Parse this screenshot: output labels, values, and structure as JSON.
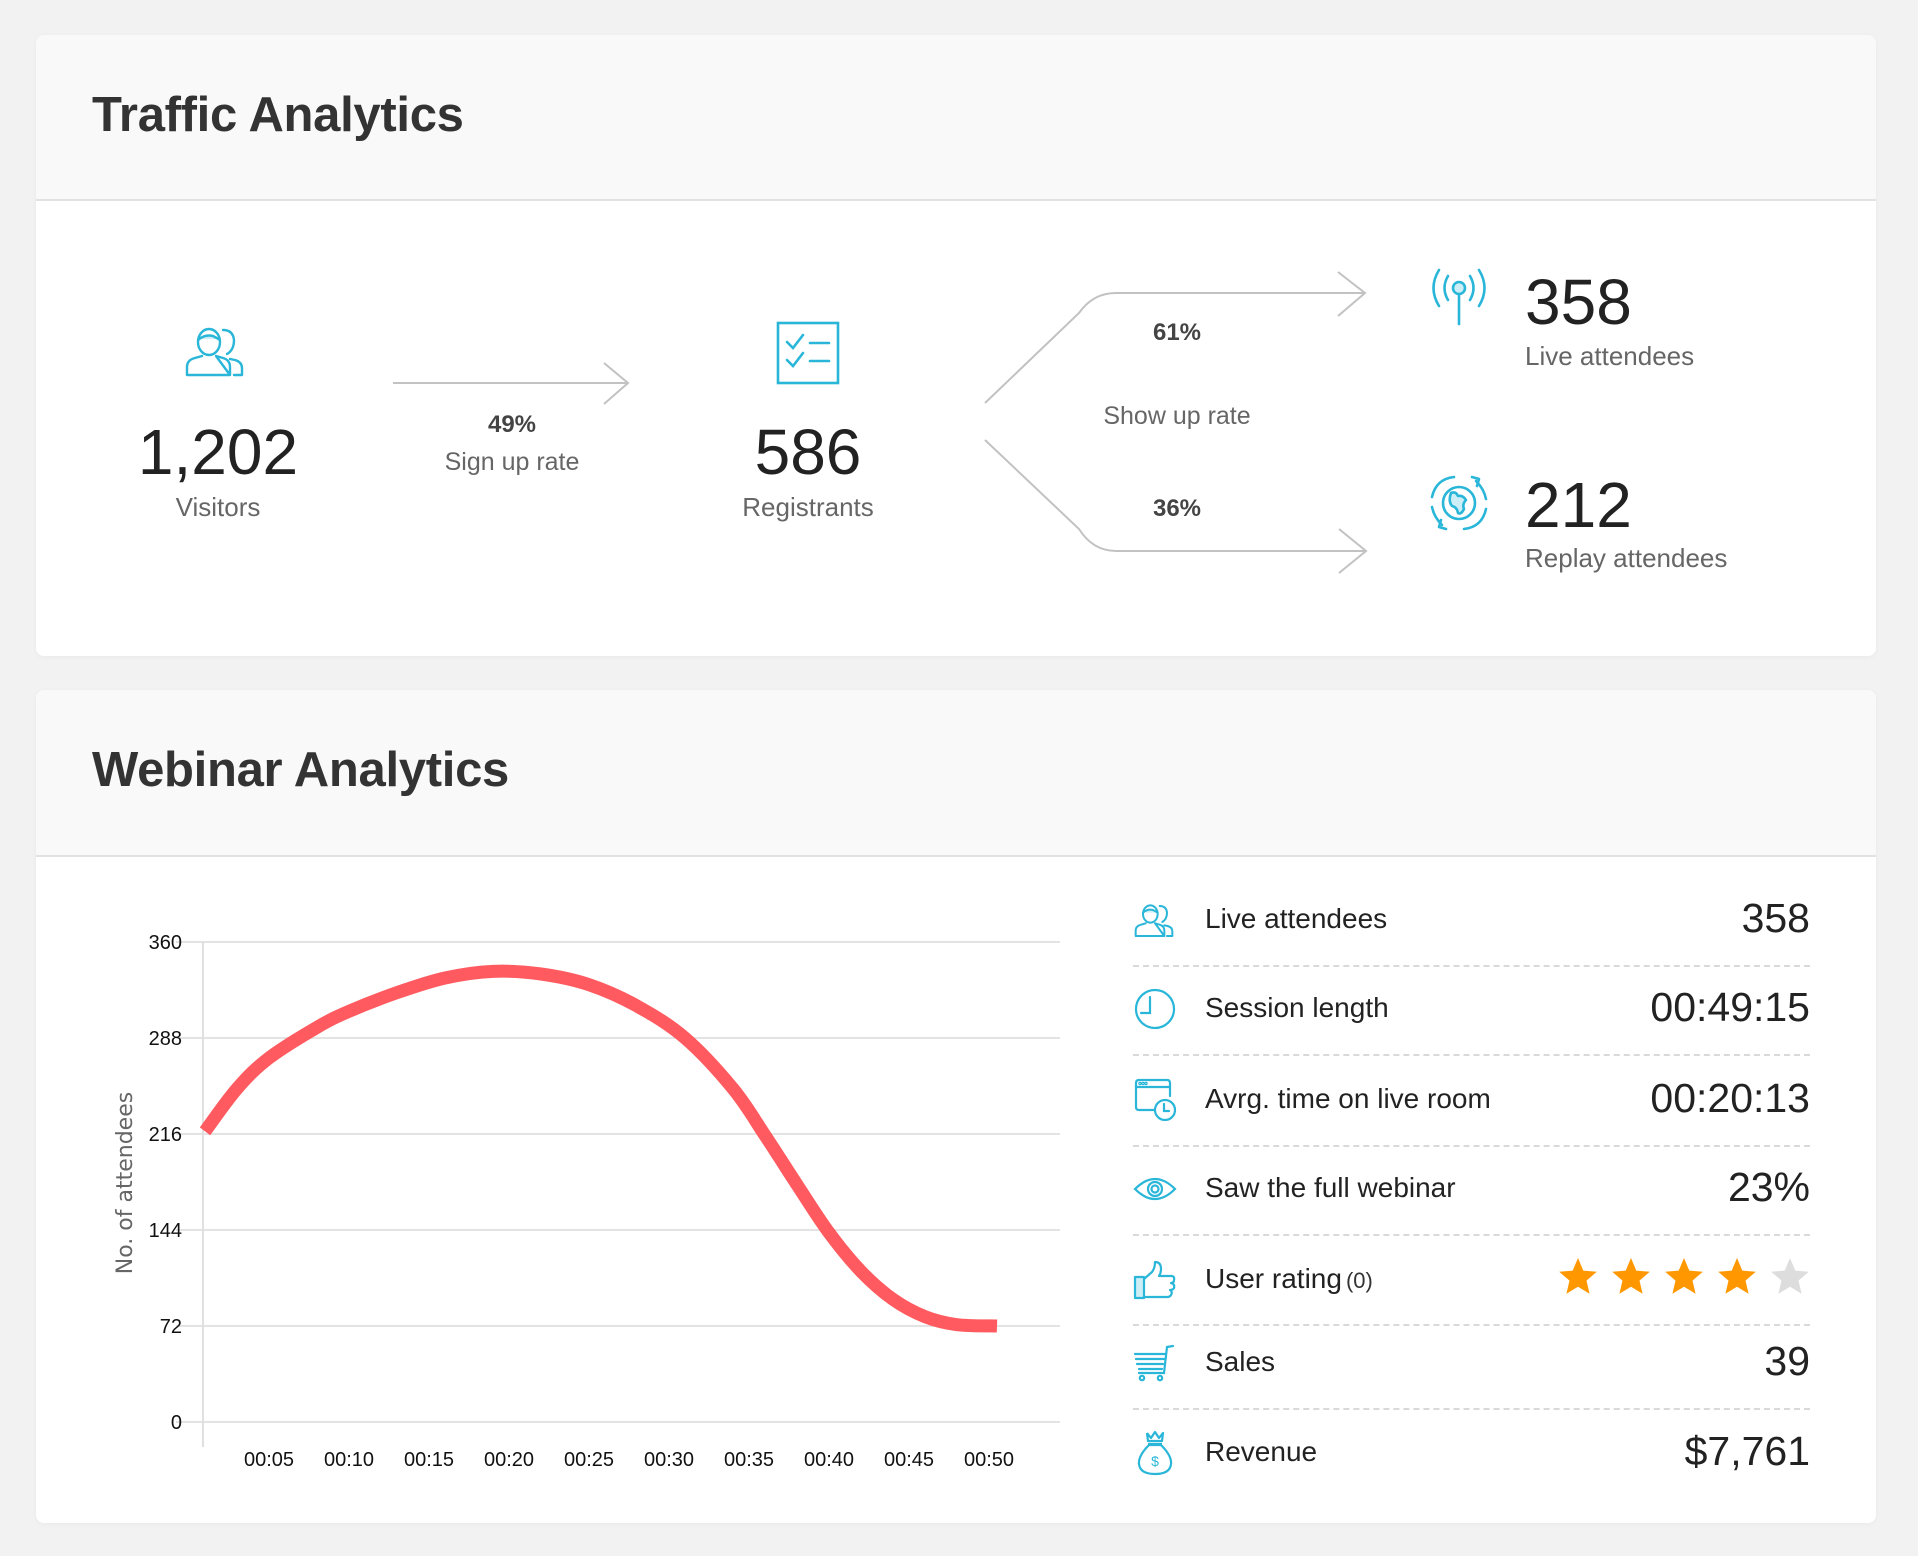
{
  "colors": {
    "accent": "#29b6d8",
    "line": "#ff5a5f",
    "star_on": "#ff9800",
    "star_off": "#dddddd"
  },
  "traffic": {
    "title": "Traffic Analytics",
    "visitors": {
      "value": "1,202",
      "label": "Visitors",
      "icon": "people-icon"
    },
    "signup": {
      "rate": "49%",
      "label": "Sign up rate"
    },
    "registrants": {
      "value": "586",
      "label": "Registrants",
      "icon": "checklist-icon"
    },
    "showup": {
      "live_rate": "61%",
      "label": "Show up rate",
      "replay_rate": "36%"
    },
    "live": {
      "value": "358",
      "label": "Live attendees",
      "icon": "broadcast-icon"
    },
    "replay": {
      "value": "212",
      "label": "Replay attendees",
      "icon": "globe-refresh-icon"
    }
  },
  "webinar": {
    "title": "Webinar Analytics",
    "stats": [
      {
        "label": "Live attendees",
        "value": "358",
        "icon": "people-icon"
      },
      {
        "label": "Session length",
        "value": "00:49:15",
        "icon": "clock-icon"
      },
      {
        "label": "Avrg. time on live room",
        "value": "00:20:13",
        "icon": "window-clock-icon"
      },
      {
        "label": "Saw the full webinar",
        "value": "23%",
        "icon": "eye-icon"
      },
      {
        "label": "User rating",
        "count": "(0)",
        "rating": 4,
        "max_rating": 5,
        "icon": "thumbs-up-icon"
      },
      {
        "label": "Sales",
        "value": "39",
        "icon": "cart-icon"
      },
      {
        "label": "Revenue",
        "value": "$7,761",
        "icon": "money-bag-icon"
      }
    ]
  },
  "chart_data": {
    "type": "line",
    "title": "",
    "xlabel": "",
    "ylabel": "No. of attendees",
    "ylim": [
      0,
      360
    ],
    "xlim": [
      0,
      55
    ],
    "yticks": [
      "0",
      "72",
      "144",
      "216",
      "288",
      "360"
    ],
    "xticks": [
      "00:05",
      "00:10",
      "00:15",
      "00:20",
      "00:25",
      "00:30",
      "00:35",
      "00:40",
      "00:45",
      "00:50"
    ],
    "grid": true,
    "series": [
      {
        "name": "Attendees",
        "x": [
          1,
          3,
          5,
          8,
          10,
          13,
          16,
          19,
          22,
          25,
          28,
          31,
          34,
          36,
          38,
          40,
          42,
          44,
          46,
          48,
          50.5
        ],
        "values": [
          218,
          250,
          273,
          296,
          308,
          322,
          333,
          338,
          336,
          328,
          312,
          288,
          250,
          215,
          178,
          142,
          113,
          92,
          79,
          73,
          72
        ]
      }
    ]
  }
}
